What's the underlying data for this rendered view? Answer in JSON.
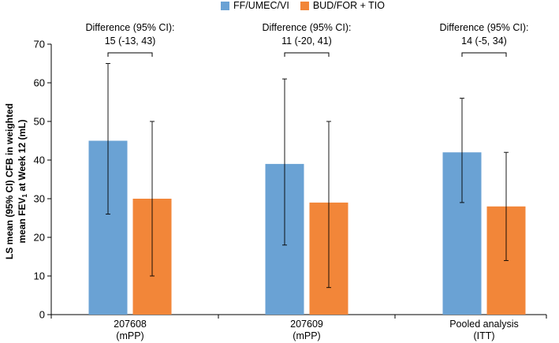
{
  "chart_data": {
    "type": "bar",
    "categories": [
      {
        "label": "207608",
        "sublabel": "(mPP)"
      },
      {
        "label": "207609",
        "sublabel": "(mPP)"
      },
      {
        "label": "Pooled analysis",
        "sublabel": "(ITT)"
      }
    ],
    "series": [
      {
        "name": "FF/UMEC/VI",
        "color": "#6aa2d4",
        "values": [
          45,
          39,
          42
        ],
        "ci_low": [
          26,
          18,
          29
        ],
        "ci_high": [
          65,
          61,
          56
        ]
      },
      {
        "name": "BUD/FOR + TIO",
        "color": "#f28639",
        "values": [
          30,
          29,
          28
        ],
        "ci_low": [
          10,
          7,
          14
        ],
        "ci_high": [
          50,
          50,
          42
        ]
      }
    ],
    "annotations": [
      {
        "title": "Difference (95% CI):",
        "value": "15 (-13, 43)"
      },
      {
        "title": "Difference (95% CI):",
        "value": "11 (-20, 41)"
      },
      {
        "title": "Difference (95% CI):",
        "value": "14 (-5, 34)"
      }
    ],
    "ylabel": {
      "line1": "LS mean (95% CI) CFB in weighted",
      "line2_prefix": "mean FEV",
      "line2_sub": "1",
      "line2_suffix": " at Week 12 (mL)"
    },
    "yticks": [
      0,
      10,
      20,
      30,
      40,
      50,
      60,
      70
    ],
    "ylim": [
      0,
      70
    ]
  }
}
